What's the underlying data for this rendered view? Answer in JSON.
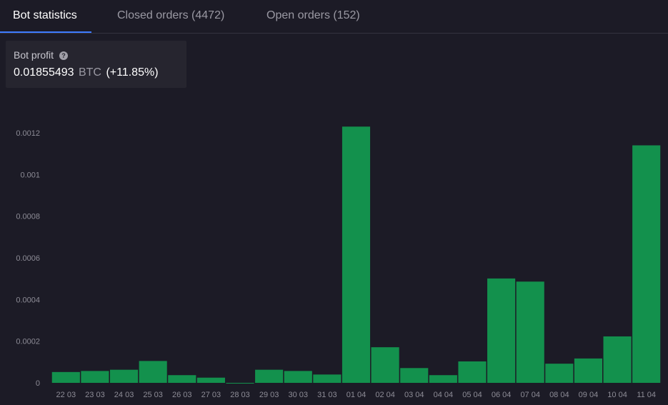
{
  "tabs": [
    {
      "label": "Bot statistics",
      "active": true
    },
    {
      "label": "Closed orders (4472)",
      "active": false
    },
    {
      "label": "Open orders (152)",
      "active": false
    }
  ],
  "profit": {
    "label": "Bot profit",
    "amount": "0.01855493",
    "unit": "BTC",
    "percent": "(+11.85%)"
  },
  "colors": {
    "accent": "#3d7bff",
    "bar": "#13914d",
    "background": "#1c1b26"
  },
  "chart_data": {
    "type": "bar",
    "categories": [
      "22 03",
      "23 03",
      "24 03",
      "25 03",
      "26 03",
      "27 03",
      "28 03",
      "29 03",
      "30 03",
      "31 03",
      "01 04",
      "02 04",
      "03 04",
      "04 04",
      "05 04",
      "06 04",
      "07 04",
      "08 04",
      "09 04",
      "10 04",
      "11 04"
    ],
    "values": [
      5.2e-05,
      5.7e-05,
      6.3e-05,
      0.000105,
      3.7e-05,
      2.5e-05,
      -3e-06,
      6.3e-05,
      5.7e-05,
      4e-05,
      0.00123,
      0.000171,
      7.1e-05,
      3.7e-05,
      0.000103,
      0.000501,
      0.000486,
      9.2e-05,
      0.000117,
      0.000223,
      0.00114
    ],
    "yticks": [
      "0",
      "0.0002",
      "0.0004",
      "0.0006",
      "0.0008",
      "0.001",
      "0.0012"
    ],
    "ytick_values": [
      0,
      0.0002,
      0.0004,
      0.0006,
      0.0008,
      0.001,
      0.0012
    ],
    "ylim": [
      -2e-05,
      0.00125
    ],
    "grid": false,
    "legend": "none"
  }
}
